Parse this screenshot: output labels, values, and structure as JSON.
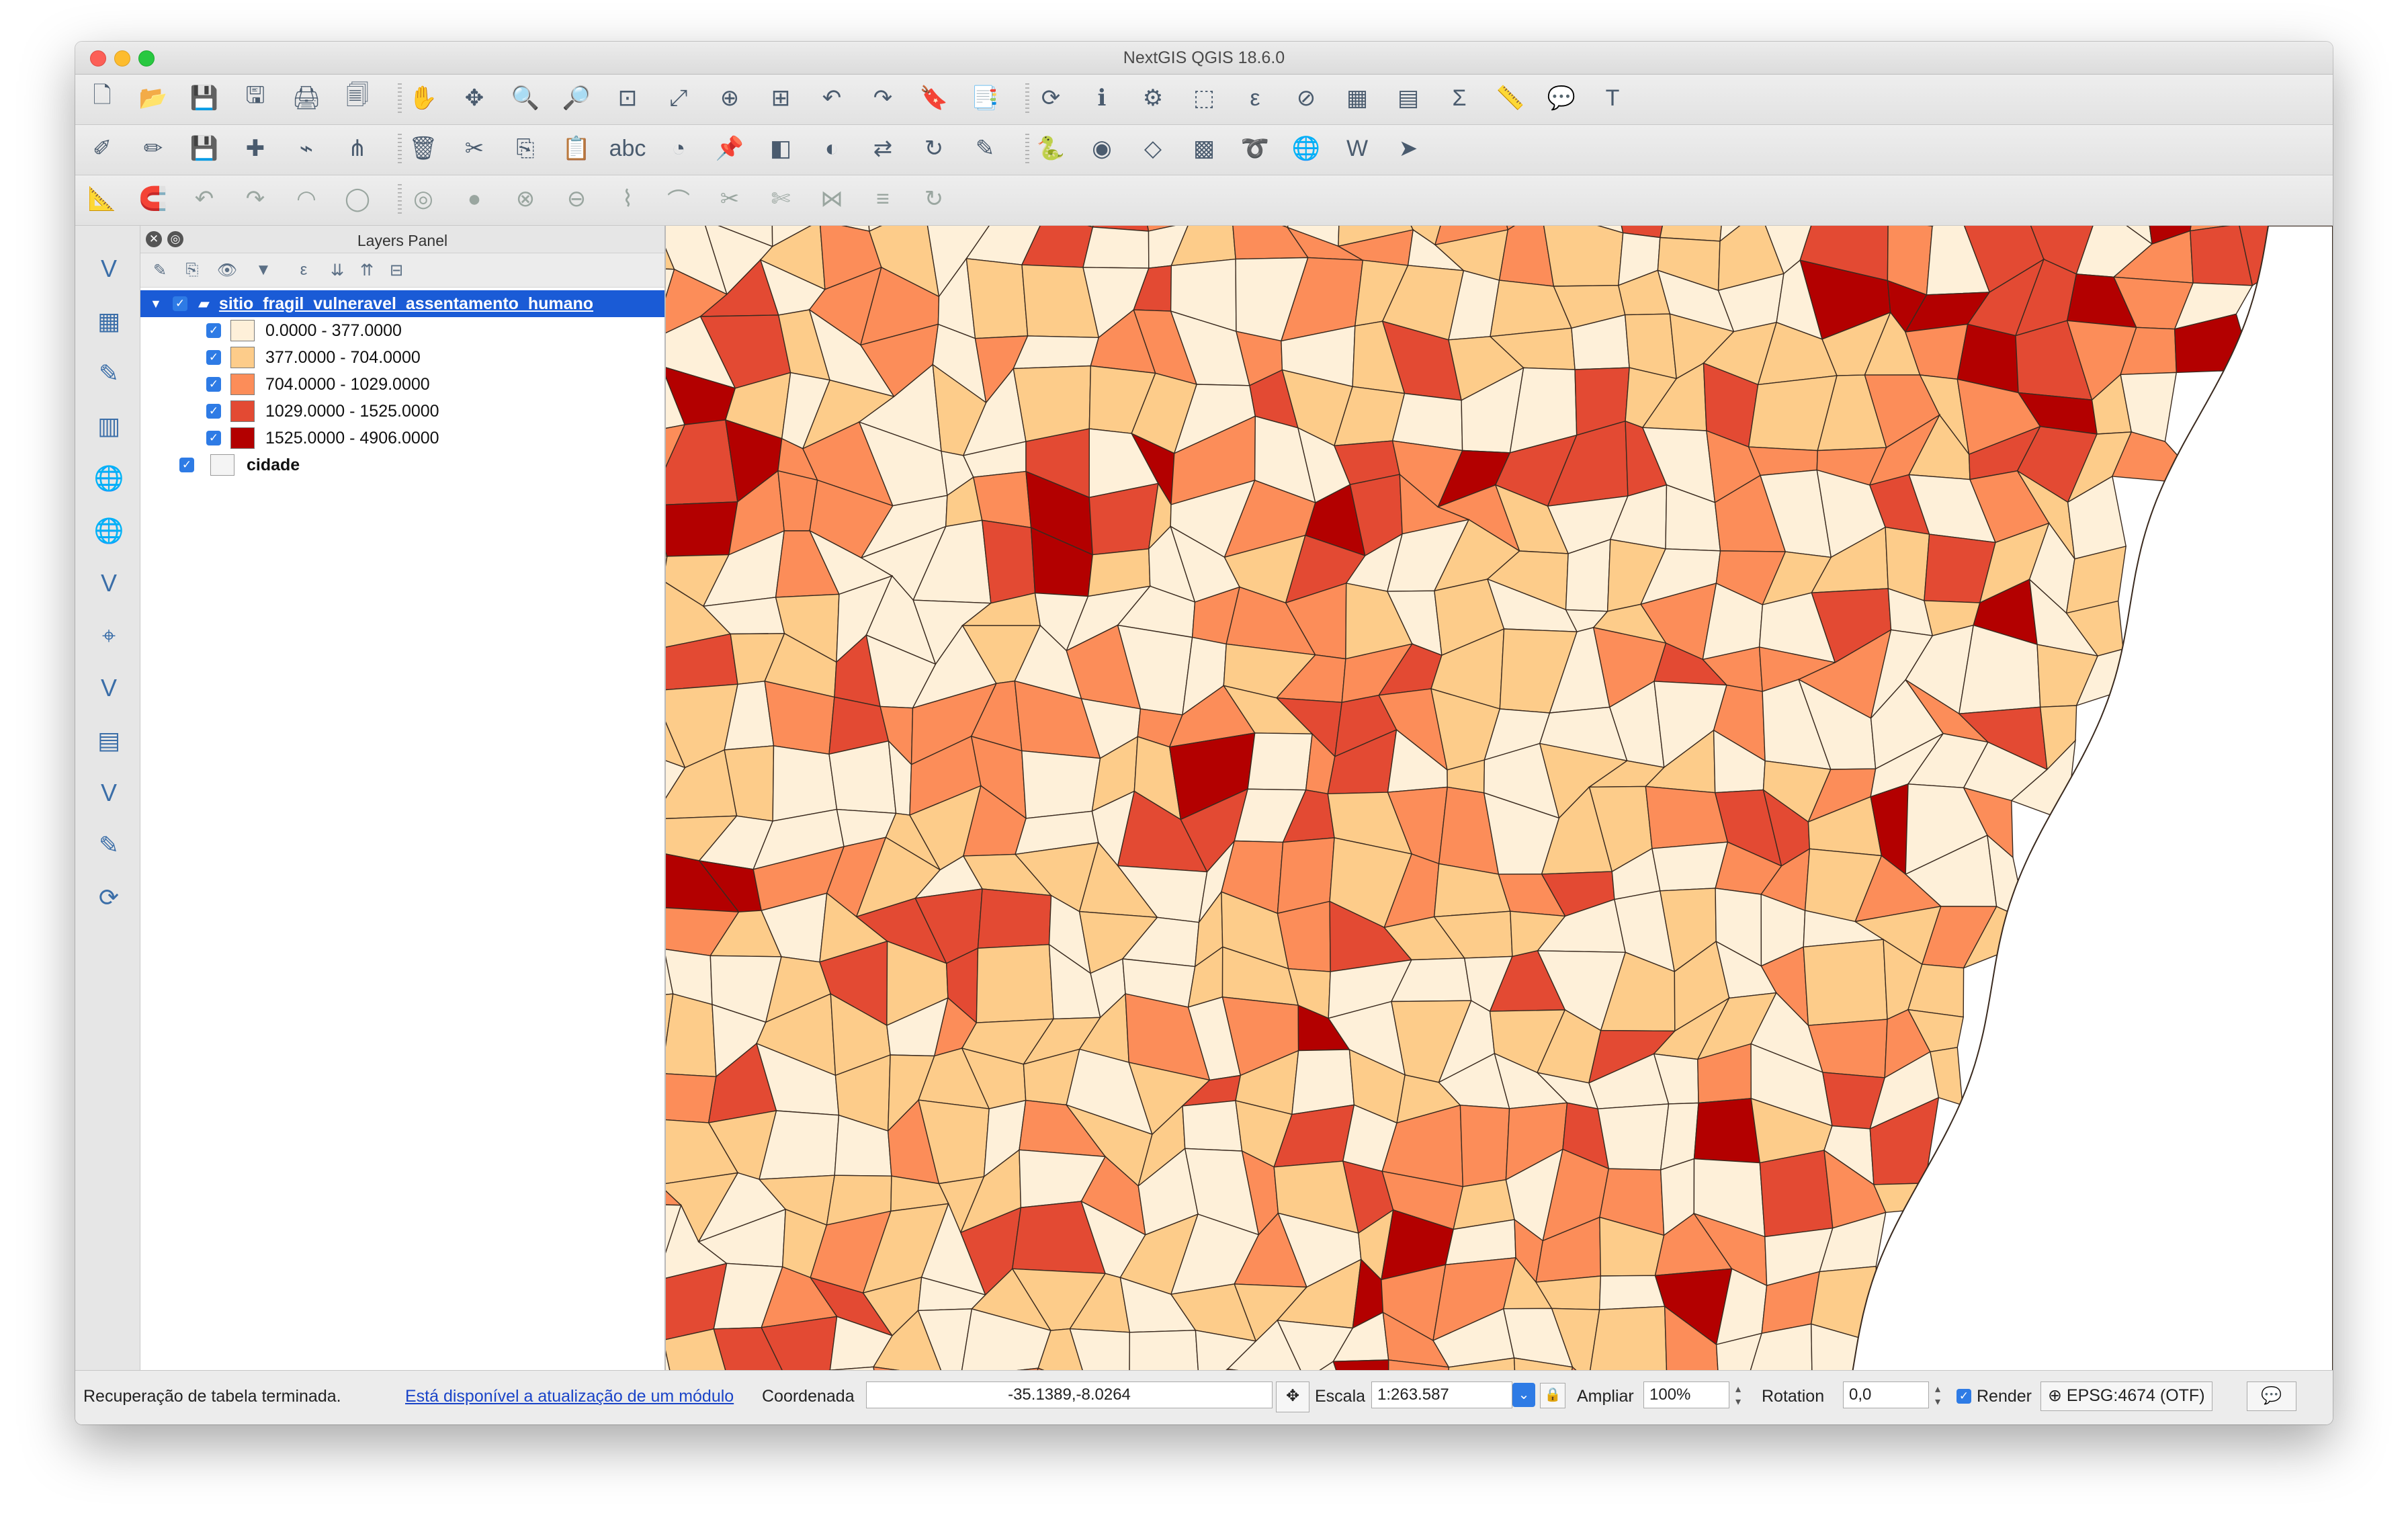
{
  "window": {
    "title": "NextGIS QGIS 18.6.0"
  },
  "toolbars": {
    "row1_icons": [
      "new-project-icon",
      "open-project-icon",
      "save-project-icon",
      "save-as-icon",
      "new-print-layout-icon",
      "layout-manager-icon",
      "pan-icon",
      "pan-to-selection-icon",
      "zoom-in-icon",
      "zoom-out-icon",
      "zoom-native-icon",
      "zoom-full-icon",
      "zoom-to-selection-icon",
      "zoom-to-layer-icon",
      "zoom-last-icon",
      "zoom-next-icon",
      "new-bookmark-icon",
      "show-bookmarks-icon",
      "refresh-icon",
      "identify-icon",
      "run-action-icon",
      "select-features-icon",
      "select-by-expression-icon",
      "deselect-icon",
      "attribute-table-icon",
      "field-calculator-icon",
      "statistics-icon",
      "measure-icon",
      "map-tips-icon",
      "text-annotation-icon"
    ],
    "row2_icons": [
      "current-edits-icon",
      "toggle-editing-icon",
      "save-edits-icon",
      "add-feature-icon",
      "digitize-icon",
      "vertex-tool-icon",
      "delete-selected-icon",
      "cut-features-icon",
      "copy-features-icon",
      "paste-features-icon",
      "label-icon",
      "diagram-icon",
      "pin-labels-icon",
      "highlight-labels-icon",
      "show-hide-labels-icon",
      "move-label-icon",
      "rotate-label-icon",
      "change-label-icon",
      "python-console-icon",
      "wkt-icon",
      "layers-plugin-icon",
      "color-ramp-icon",
      "geocoder-icon",
      "globe-icon",
      "wkt-tool-icon",
      "coordinate-capture-icon"
    ],
    "row3_icons": [
      "snapping-icon",
      "magnet-icon",
      "undo-icon",
      "redo-icon",
      "simplify-icon",
      "add-ring-icon",
      "add-part-icon",
      "fill-ring-icon",
      "delete-ring-icon",
      "delete-part-icon",
      "reshape-icon",
      "offset-curve-icon",
      "split-features-icon",
      "split-parts-icon",
      "merge-features-icon",
      "merge-attributes-icon",
      "rotate-point-icon"
    ]
  },
  "left_toolbar_icons": [
    "add-vector-layer-icon",
    "add-raster-layer-icon",
    "add-delimited-text-icon",
    "add-postgis-layer-icon",
    "add-wms-layer-icon",
    "add-wcs-layer-icon",
    "add-wfs-layer-icon",
    "add-spatialite-layer-icon",
    "add-virtual-layer-icon",
    "add-oracle-layer-icon",
    "new-shapefile-icon",
    "new-temporary-layer-icon",
    "create-layer-icon"
  ],
  "layers_panel": {
    "title": "Layers Panel",
    "layers": [
      {
        "name": "sitio_fragil_vulneravel_assentamento_humano",
        "checked": true,
        "selected": true,
        "classes": [
          {
            "label": "0.0000 - 377.0000",
            "color": "#fef0d9",
            "checked": true
          },
          {
            "label": "377.0000 - 704.0000",
            "color": "#fdcc8a",
            "checked": true
          },
          {
            "label": "704.0000 - 1029.0000",
            "color": "#fc8d59",
            "checked": true
          },
          {
            "label": "1029.0000 - 1525.0000",
            "color": "#e34a33",
            "checked": true
          },
          {
            "label": "1525.0000 - 4906.0000",
            "color": "#b30000",
            "checked": true
          }
        ]
      },
      {
        "name": "cidade",
        "checked": true,
        "selected": false
      }
    ]
  },
  "statusbar": {
    "message": "Recuperação de tabela terminada.",
    "update_link": "Está disponível a atualização de um módulo",
    "coordinate_label": "Coordenada",
    "coordinate_value": "-35.1389,-8.0264",
    "scale_label": "Escala",
    "scale_value": "1:263.587",
    "magnifier_label": "Ampliar",
    "magnifier_value": "100%",
    "rotation_label": "Rotation",
    "rotation_value": "0,0",
    "render_label": "Render",
    "render_checked": true,
    "crs_value": "EPSG:4674 (OTF)"
  },
  "colors": {
    "class_colors": [
      "#fef0d9",
      "#fdcc8a",
      "#fc8d59",
      "#e34a33",
      "#b30000"
    ],
    "selection_blue": "#1a5bd6"
  }
}
